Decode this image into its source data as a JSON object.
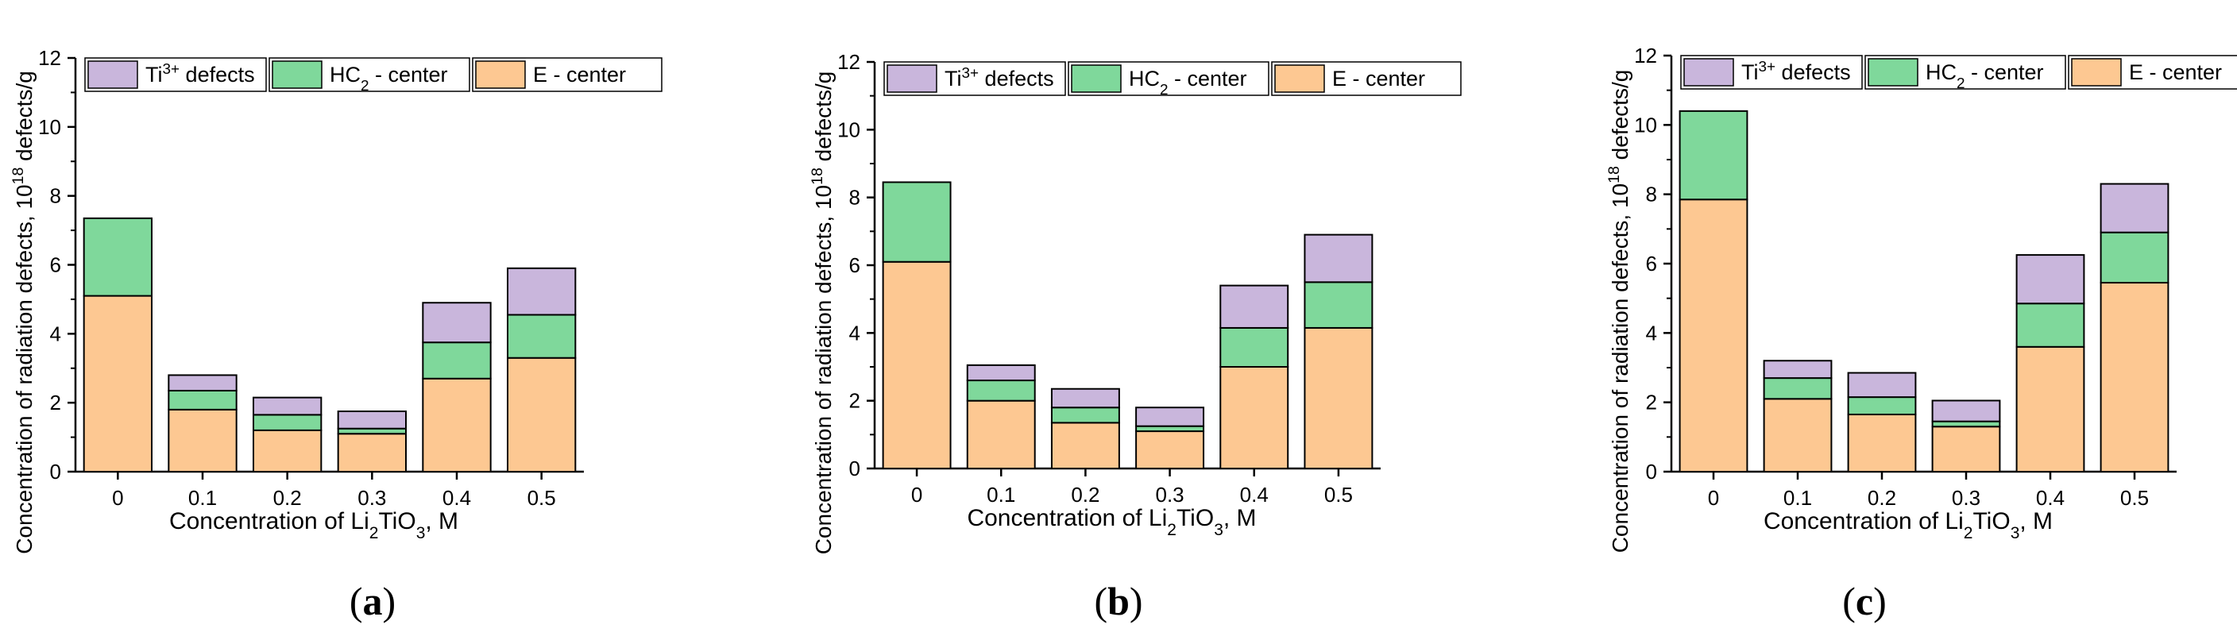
{
  "chart_data": [
    {
      "type": "bar",
      "stacked": true,
      "panel_label": "a",
      "xlabel": "Concentration of Li2TiO3, M",
      "ylabel": "Concentration of radiation defects, 10^18 defects/g",
      "categories": [
        "0",
        "0.1",
        "0.2",
        "0.3",
        "0.4",
        "0.5"
      ],
      "ylim": [
        0,
        12
      ],
      "yticks": [
        "0",
        "2",
        "4",
        "6",
        "8",
        "10",
        "12"
      ],
      "legend_position": "top",
      "series": [
        {
          "name": "E - center",
          "values": [
            5.1,
            1.8,
            1.2,
            1.1,
            2.7,
            3.3
          ]
        },
        {
          "name": "HC2 - center",
          "values": [
            2.25,
            0.55,
            0.45,
            0.15,
            1.05,
            1.25
          ]
        },
        {
          "name": "Ti3+ defects",
          "values": [
            0.0,
            0.45,
            0.5,
            0.5,
            1.15,
            1.35
          ]
        }
      ]
    },
    {
      "type": "bar",
      "stacked": true,
      "panel_label": "b",
      "xlabel": "Concentration of Li2TiO3, M",
      "ylabel": "Concentration of radiation defects, 10^18 defects/g",
      "categories": [
        "0",
        "0.1",
        "0.2",
        "0.3",
        "0.4",
        "0.5"
      ],
      "ylim": [
        0,
        12
      ],
      "yticks": [
        "0",
        "2",
        "4",
        "6",
        "8",
        "10",
        "12"
      ],
      "legend_position": "top",
      "series": [
        {
          "name": "E - center",
          "values": [
            6.1,
            2.0,
            1.35,
            1.1,
            3.0,
            4.15
          ]
        },
        {
          "name": "HC2 - center",
          "values": [
            2.35,
            0.6,
            0.45,
            0.15,
            1.15,
            1.35
          ]
        },
        {
          "name": "Ti3+ defects",
          "values": [
            0.0,
            0.45,
            0.55,
            0.55,
            1.25,
            1.4
          ]
        }
      ]
    },
    {
      "type": "bar",
      "stacked": true,
      "panel_label": "c",
      "xlabel": "Concentration of Li2TiO3, M",
      "ylabel": "Concentration of radiation defects, 10^18 defects/g",
      "categories": [
        "0",
        "0.1",
        "0.2",
        "0.3",
        "0.4",
        "0.5"
      ],
      "ylim": [
        0,
        12
      ],
      "yticks": [
        "0",
        "2",
        "4",
        "6",
        "8",
        "10",
        "12"
      ],
      "legend_position": "top",
      "series": [
        {
          "name": "E - center",
          "values": [
            7.85,
            2.1,
            1.65,
            1.3,
            3.6,
            5.45
          ]
        },
        {
          "name": "HC2 - center",
          "values": [
            2.55,
            0.6,
            0.5,
            0.15,
            1.25,
            1.45
          ]
        },
        {
          "name": "Ti3+ defects",
          "values": [
            0.0,
            0.5,
            0.7,
            0.6,
            1.4,
            1.4
          ]
        }
      ]
    }
  ],
  "colors": {
    "E - center": "#fdc892",
    "HC2 - center": "#7fd89b",
    "Ti3+ defects": "#c9b6dc",
    "outline": "#000000"
  }
}
